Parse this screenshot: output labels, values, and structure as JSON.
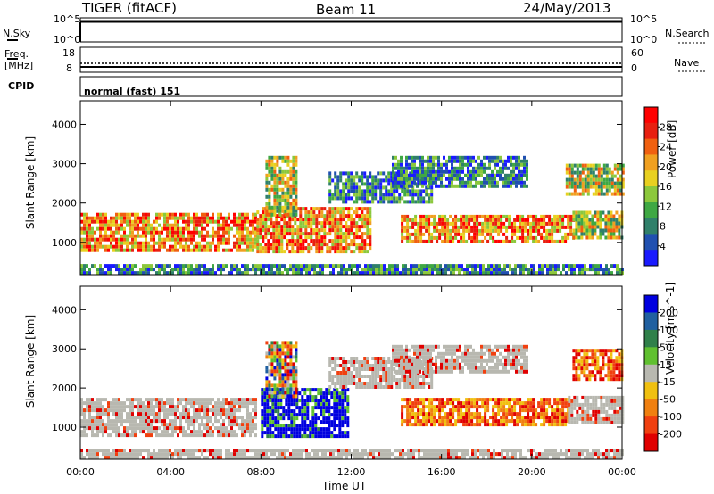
{
  "header": {
    "station": "TIGER (fitACF)",
    "beam": "Beam 11",
    "date": "24/May/2013"
  },
  "status_panels": {
    "nsky": {
      "label": "N.Sky",
      "ticks": [
        "10^5",
        "10^0"
      ]
    },
    "nsearch": {
      "label": "N.Search",
      "ticks": [
        "10^5",
        "10^0"
      ]
    },
    "freq": {
      "label_line1": "Freq.",
      "label_line2": "[MHz]",
      "ticks": [
        "18",
        "8"
      ]
    },
    "nave": {
      "label": "Nave",
      "ticks": [
        "60",
        "0"
      ]
    },
    "cpid": {
      "label": "CPID",
      "value": "normal (fast) 151"
    }
  },
  "chart_data": [
    {
      "type": "heatmap",
      "title": "",
      "quantity": "Power",
      "ylabel": "Slant Range [km]",
      "xlabel": "",
      "x_ticks": [
        "00:00",
        "04:00",
        "08:00",
        "12:00",
        "16:00",
        "20:00",
        "00:00"
      ],
      "x_range_hours": [
        0,
        24
      ],
      "y_ticks": [
        1000,
        2000,
        3000,
        4000
      ],
      "ylim": [
        180,
        4600
      ],
      "colorbar": {
        "label": "Power [dB]",
        "ticks": [
          4,
          8,
          12,
          16,
          20,
          24,
          28
        ],
        "range": [
          0,
          32
        ],
        "colors": [
          "#1a1aff",
          "#2050b0",
          "#30806a",
          "#3fa843",
          "#8cc83c",
          "#e8d020",
          "#f0a020",
          "#f06010",
          "#e82010",
          "#ff0000"
        ]
      },
      "bands": [
        {
          "t_start": 0.0,
          "t_end": 7.8,
          "range_low": 800,
          "range_high": 1750,
          "level": "high"
        },
        {
          "t_start": 7.8,
          "t_end": 12.9,
          "range_low": 750,
          "range_high": 1900,
          "level": "high"
        },
        {
          "t_start": 8.2,
          "t_end": 9.6,
          "range_low": 1700,
          "range_high": 3200,
          "level": "mid"
        },
        {
          "t_start": 11.0,
          "t_end": 15.6,
          "range_low": 2000,
          "range_high": 2800,
          "level": "low"
        },
        {
          "t_start": 13.8,
          "t_end": 19.8,
          "range_low": 2400,
          "range_high": 3200,
          "level": "low"
        },
        {
          "t_start": 14.2,
          "t_end": 21.8,
          "range_low": 1050,
          "range_high": 1700,
          "level": "high"
        },
        {
          "t_start": 21.8,
          "t_end": 24.0,
          "range_low": 1100,
          "range_high": 1800,
          "level": "mid"
        },
        {
          "t_start": 21.5,
          "t_end": 24.0,
          "range_low": 2200,
          "range_high": 3000,
          "level": "mid"
        },
        {
          "t_start": 0.0,
          "t_end": 24.0,
          "range_low": 180,
          "range_high": 450,
          "level": "low"
        }
      ]
    },
    {
      "type": "heatmap",
      "title": "",
      "quantity": "Velocity",
      "ylabel": "Slant Range [km]",
      "xlabel": "Time UT",
      "x_ticks": [
        "00:00",
        "04:00",
        "08:00",
        "12:00",
        "16:00",
        "20:00",
        "00:00"
      ],
      "x_range_hours": [
        0,
        24
      ],
      "y_ticks": [
        1000,
        2000,
        3000,
        4000
      ],
      "ylim": [
        180,
        4600
      ],
      "colorbar": {
        "label": "Velocity [m s^-1]",
        "ticks": [
          "200",
          "100",
          "50",
          "15",
          "-15",
          "-50",
          "-100",
          "-200"
        ],
        "colors": [
          "#0000e0",
          "#2060a0",
          "#30804a",
          "#60c030",
          "#b8b8b0",
          "#f0c010",
          "#f08010",
          "#f04010",
          "#e00000"
        ]
      },
      "bands": [
        {
          "t_start": 0.0,
          "t_end": 7.8,
          "range_low": 800,
          "range_high": 1750,
          "level": "ground"
        },
        {
          "t_start": 8.0,
          "t_end": 11.8,
          "range_low": 750,
          "range_high": 2000,
          "level": "positive"
        },
        {
          "t_start": 8.2,
          "t_end": 9.6,
          "range_low": 1800,
          "range_high": 3200,
          "level": "mixed"
        },
        {
          "t_start": 11.0,
          "t_end": 15.6,
          "range_low": 2000,
          "range_high": 2800,
          "level": "ground"
        },
        {
          "t_start": 13.8,
          "t_end": 19.8,
          "range_low": 2400,
          "range_high": 3100,
          "level": "ground"
        },
        {
          "t_start": 14.2,
          "t_end": 21.6,
          "range_low": 1050,
          "range_high": 1750,
          "level": "negative"
        },
        {
          "t_start": 21.6,
          "t_end": 24.0,
          "range_low": 1100,
          "range_high": 1800,
          "level": "ground"
        },
        {
          "t_start": 21.8,
          "t_end": 24.0,
          "range_low": 2200,
          "range_high": 3000,
          "level": "negative"
        },
        {
          "t_start": 0.0,
          "t_end": 24.0,
          "range_low": 180,
          "range_high": 450,
          "level": "ground"
        }
      ]
    }
  ]
}
